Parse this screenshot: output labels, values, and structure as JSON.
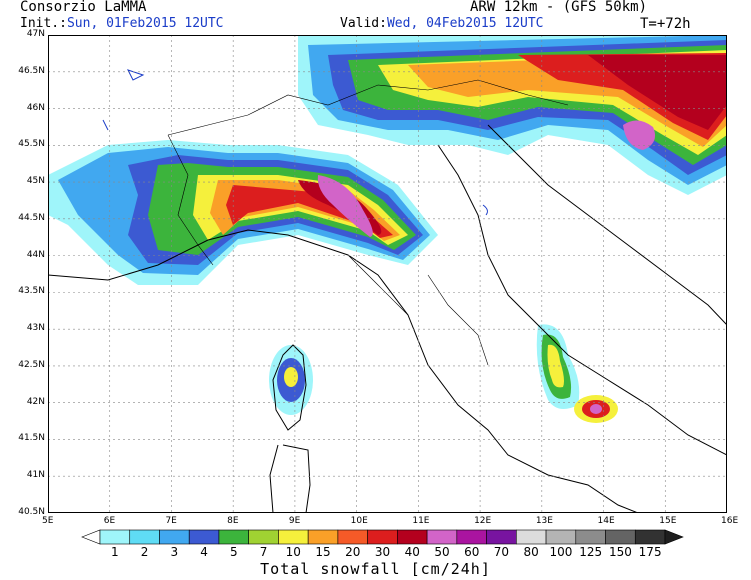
{
  "header": {
    "org": "Consorzio LaMMA",
    "model": "ARW 12km - (GFS 50km)",
    "init_label": "Init.:",
    "init_value": "Sun, 01Feb2015 12UTC",
    "valid_label": "Valid:",
    "valid_value": "Wed, 04Feb2015 12UTC",
    "lead": "T=+72h"
  },
  "axes": {
    "lon_labels": [
      "5E",
      "6E",
      "7E",
      "8E",
      "9E",
      "10E",
      "11E",
      "12E",
      "13E",
      "14E",
      "15E",
      "16E"
    ],
    "lat_labels": [
      "47N",
      "46.5N",
      "46N",
      "45.5N",
      "45N",
      "44.5N",
      "44N",
      "43.5N",
      "43N",
      "42.5N",
      "42N",
      "41.5N",
      "41N",
      "40.5N"
    ]
  },
  "colorbar": {
    "title": "Total snowfall [cm/24h]",
    "labels": [
      "1",
      "2",
      "3",
      "4",
      "5",
      "7",
      "10",
      "15",
      "20",
      "30",
      "40",
      "50",
      "60",
      "70",
      "80",
      "100",
      "125",
      "150",
      "175"
    ],
    "colors": [
      "#9ff5fa",
      "#5fdcf5",
      "#41a8f0",
      "#3c5ad2",
      "#3cb43c",
      "#a0d232",
      "#f5f03c",
      "#faa028",
      "#f55a28",
      "#dc1e1e",
      "#b4001e",
      "#d264c8",
      "#aa14a0",
      "#7814a0",
      "#dcdcdc",
      "#b4b4b4",
      "#8c8c8c",
      "#646464",
      "#323232"
    ],
    "min_color": "#ffffff",
    "max_color": "#1e1e1e"
  }
}
